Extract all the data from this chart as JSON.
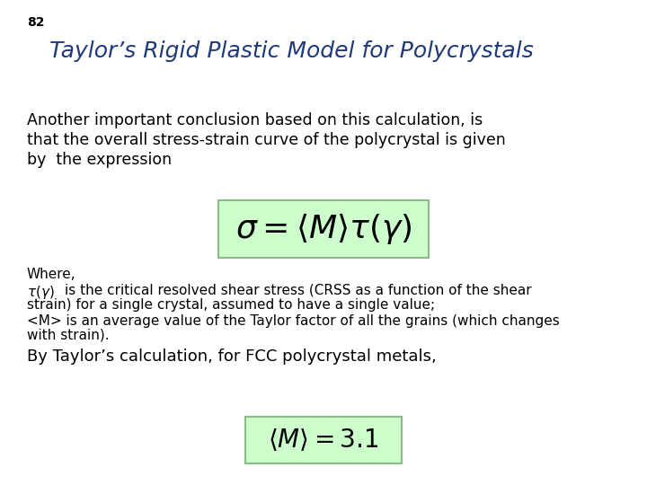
{
  "slide_number": "82",
  "title": "Taylor’s Rigid Plastic Model for Polycrystals",
  "title_color": "#1F3A7A",
  "title_fontsize": 18,
  "slide_number_fontsize": 10,
  "background_color": "#FFFFFF",
  "body_text_1_line1": "Another important conclusion based on this calculation, is",
  "body_text_1_line2": "that the overall stress-strain curve of the polycrystal is given",
  "body_text_1_line3": "by  the expression",
  "body_text_1_fontsize": 12.5,
  "body_text_1_color": "#000000",
  "equation_1": "$\\sigma = \\langle M \\rangle \\tau(\\gamma)$",
  "equation_1_fontsize": 26,
  "equation_box_color": "#CCFFCC",
  "equation_box_edge_color": "#88BB88",
  "where_text": "Where,",
  "where_fontsize": 11,
  "tau_label": "$\\tau(\\gamma)$",
  "tau_desc_line1": "is the critical resolved shear stress (CRSS as a function of the shear",
  "tau_desc_line2": "strain) for a single crystal, assumed to have a single value;",
  "avg_M_desc_line1": "<M> is an average value of the Taylor factor of all the grains (which changes",
  "avg_M_desc_line2": "with strain).",
  "footnote_text": "By Taylor’s calculation, for FCC polycrystal metals,",
  "footnote_fontsize": 13,
  "equation_2": "$\\langle M \\rangle =  3.1$",
  "equation_2_fontsize": 20,
  "equation_2_box_color": "#CCFFCC",
  "equation_2_box_edge_color": "#88BB88",
  "small_text_fontsize": 11,
  "small_text_color": "#000000"
}
